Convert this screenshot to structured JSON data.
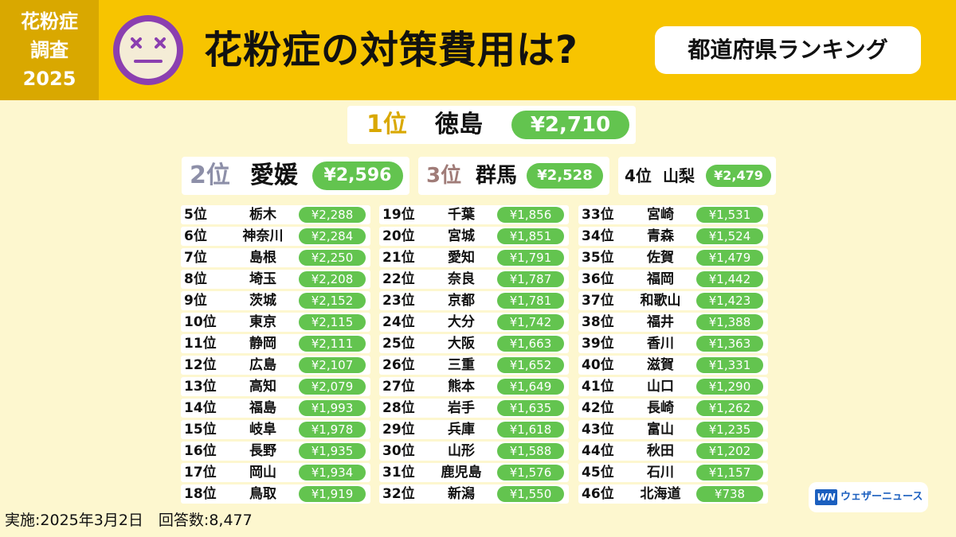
{
  "header": {
    "survey_tag": [
      "花粉症",
      "調査",
      "2025"
    ],
    "face_icon": "dizzy-face-icon",
    "title": "花粉症の対策費用は?",
    "subtitle": "都道府県ランキング"
  },
  "colors": {
    "header_bg": "#f7c400",
    "tag_bg": "#d9a800",
    "page_bg": "#fdf7cf",
    "price_pill": "#63c44f",
    "rank1": "#d9a800",
    "rank2": "#8d8fa8",
    "rank3": "#a07c78",
    "face": "#8b3fb0"
  },
  "top": [
    {
      "rank": "1位",
      "pref": "徳島",
      "price": "¥2,710"
    },
    {
      "rank": "2位",
      "pref": "愛媛",
      "price": "¥2,596"
    },
    {
      "rank": "3位",
      "pref": "群馬",
      "price": "¥2,528"
    },
    {
      "rank": "4位",
      "pref": "山梨",
      "price": "¥2,479"
    }
  ],
  "columns": [
    [
      {
        "rank": "5位",
        "pref": "栃木",
        "price": "¥2,288"
      },
      {
        "rank": "6位",
        "pref": "神奈川",
        "price": "¥2,284"
      },
      {
        "rank": "7位",
        "pref": "島根",
        "price": "¥2,250"
      },
      {
        "rank": "8位",
        "pref": "埼玉",
        "price": "¥2,208"
      },
      {
        "rank": "9位",
        "pref": "茨城",
        "price": "¥2,152"
      },
      {
        "rank": "10位",
        "pref": "東京",
        "price": "¥2,115"
      },
      {
        "rank": "11位",
        "pref": "静岡",
        "price": "¥2,111"
      },
      {
        "rank": "12位",
        "pref": "広島",
        "price": "¥2,107"
      },
      {
        "rank": "13位",
        "pref": "高知",
        "price": "¥2,079"
      },
      {
        "rank": "14位",
        "pref": "福島",
        "price": "¥1,993"
      },
      {
        "rank": "15位",
        "pref": "岐阜",
        "price": "¥1,978"
      },
      {
        "rank": "16位",
        "pref": "長野",
        "price": "¥1,935"
      },
      {
        "rank": "17位",
        "pref": "岡山",
        "price": "¥1,934"
      },
      {
        "rank": "18位",
        "pref": "鳥取",
        "price": "¥1,919"
      }
    ],
    [
      {
        "rank": "19位",
        "pref": "千葉",
        "price": "¥1,856"
      },
      {
        "rank": "20位",
        "pref": "宮城",
        "price": "¥1,851"
      },
      {
        "rank": "21位",
        "pref": "愛知",
        "price": "¥1,791"
      },
      {
        "rank": "22位",
        "pref": "奈良",
        "price": "¥1,787"
      },
      {
        "rank": "23位",
        "pref": "京都",
        "price": "¥1,781"
      },
      {
        "rank": "24位",
        "pref": "大分",
        "price": "¥1,742"
      },
      {
        "rank": "25位",
        "pref": "大阪",
        "price": "¥1,663"
      },
      {
        "rank": "26位",
        "pref": "三重",
        "price": "¥1,652"
      },
      {
        "rank": "27位",
        "pref": "熊本",
        "price": "¥1,649"
      },
      {
        "rank": "28位",
        "pref": "岩手",
        "price": "¥1,635"
      },
      {
        "rank": "29位",
        "pref": "兵庫",
        "price": "¥1,618"
      },
      {
        "rank": "30位",
        "pref": "山形",
        "price": "¥1,588"
      },
      {
        "rank": "31位",
        "pref": "鹿児島",
        "price": "¥1,576"
      },
      {
        "rank": "32位",
        "pref": "新潟",
        "price": "¥1,550"
      }
    ],
    [
      {
        "rank": "33位",
        "pref": "宮崎",
        "price": "¥1,531"
      },
      {
        "rank": "34位",
        "pref": "青森",
        "price": "¥1,524"
      },
      {
        "rank": "35位",
        "pref": "佐賀",
        "price": "¥1,479"
      },
      {
        "rank": "36位",
        "pref": "福岡",
        "price": "¥1,442"
      },
      {
        "rank": "37位",
        "pref": "和歌山",
        "price": "¥1,423"
      },
      {
        "rank": "38位",
        "pref": "福井",
        "price": "¥1,388"
      },
      {
        "rank": "39位",
        "pref": "香川",
        "price": "¥1,363"
      },
      {
        "rank": "40位",
        "pref": "滋賀",
        "price": "¥1,331"
      },
      {
        "rank": "41位",
        "pref": "山口",
        "price": "¥1,290"
      },
      {
        "rank": "42位",
        "pref": "長崎",
        "price": "¥1,262"
      },
      {
        "rank": "43位",
        "pref": "富山",
        "price": "¥1,235"
      },
      {
        "rank": "44位",
        "pref": "秋田",
        "price": "¥1,202"
      },
      {
        "rank": "45位",
        "pref": "石川",
        "price": "¥1,157"
      },
      {
        "rank": "46位",
        "pref": "北海道",
        "price": "¥738"
      }
    ]
  ],
  "footer": {
    "date_text": "実施:2025年3月2日　回答数:8,477",
    "logo_mark": "WN",
    "logo_name": "ウェザーニュース",
    "logo_icon": "weathernews-logo-icon"
  }
}
